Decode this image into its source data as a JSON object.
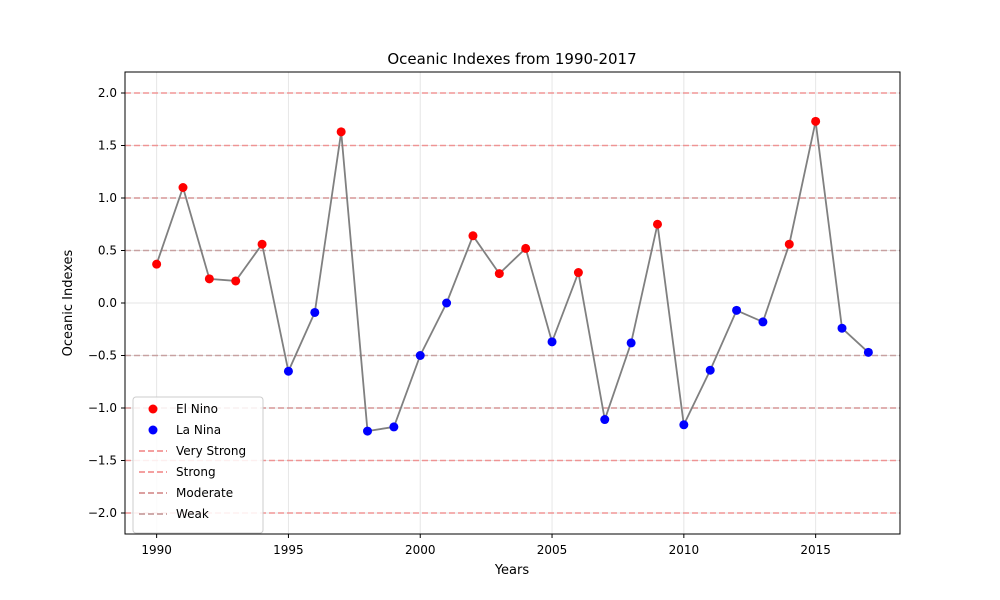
{
  "chart_data": {
    "type": "line",
    "title": "Oceanic Indexes from 1990-2017",
    "xlabel": "Years",
    "ylabel": "Oceanic Indexes",
    "xlim": [
      1988.8,
      2018.2
    ],
    "ylim": [
      -2.2,
      2.2
    ],
    "xticks": [
      1990,
      1995,
      2000,
      2005,
      2010,
      2015
    ],
    "yticks": [
      -2.0,
      -1.5,
      -1.0,
      -0.5,
      0.0,
      0.5,
      1.0,
      1.5,
      2.0
    ],
    "grid": true,
    "legend_position": "lower-left",
    "line_color": "#808080",
    "x": [
      1990,
      1991,
      1992,
      1993,
      1994,
      1995,
      1996,
      1997,
      1998,
      1999,
      2000,
      2001,
      2002,
      2003,
      2004,
      2005,
      2006,
      2007,
      2008,
      2009,
      2010,
      2011,
      2012,
      2013,
      2014,
      2015,
      2016,
      2017
    ],
    "y": [
      0.37,
      1.1,
      0.23,
      0.21,
      0.56,
      -0.65,
      -0.09,
      1.63,
      -1.22,
      -1.18,
      -0.5,
      0.0,
      0.64,
      0.28,
      0.52,
      -0.37,
      0.29,
      -1.11,
      -0.38,
      0.75,
      -1.16,
      -0.64,
      -0.07,
      -0.18,
      0.56,
      1.73,
      -0.24,
      -0.47
    ],
    "series": [
      {
        "name": "El Nino",
        "color": "#ff0000",
        "years": [
          1990,
          1991,
          1992,
          1993,
          1994,
          1997,
          2002,
          2003,
          2004,
          2006,
          2009,
          2014,
          2015
        ]
      },
      {
        "name": "La Nina",
        "color": "#0000ff",
        "years": [
          1995,
          1996,
          1998,
          1999,
          2000,
          2001,
          2005,
          2007,
          2008,
          2010,
          2011,
          2012,
          2013,
          2016,
          2017
        ]
      }
    ],
    "threshold_lines": [
      {
        "name": "Very Strong",
        "color": "#f08080",
        "levels": [
          2.0,
          -2.0
        ]
      },
      {
        "name": "Strong",
        "color": "#f08080",
        "levels": [
          1.5,
          -1.5
        ]
      },
      {
        "name": "Moderate",
        "color": "#d08080",
        "levels": [
          1.0,
          -1.0
        ]
      },
      {
        "name": "Weak",
        "color": "#c09090",
        "levels": [
          0.5,
          -0.5
        ]
      }
    ]
  }
}
